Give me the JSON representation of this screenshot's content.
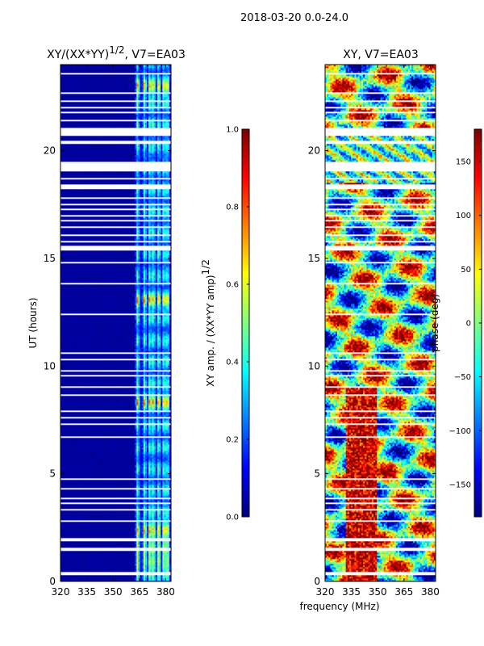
{
  "figure": {
    "suptitle": "2018-03-20 0.0-24.0",
    "xlabel": "frequency (MHz)"
  },
  "colors": {
    "colormap": [
      "#00007f",
      "#0000ff",
      "#007fff",
      "#00ffff",
      "#7fff7f",
      "#ffff00",
      "#ff7f00",
      "#ff0000",
      "#7f0000"
    ],
    "background_gap": "#ffffff",
    "axis": "#000000"
  },
  "chart_data": [
    {
      "type": "heatmap",
      "name": "amplitude-panel",
      "title_prefix": "XY/(XX*YY)",
      "title_exponent": "1/2",
      "title_suffix": ", V7=EA03",
      "xlabel": "",
      "ylabel": "UT (hours)",
      "xlim": [
        320,
        383
      ],
      "ylim": [
        0,
        24
      ],
      "xticks": [
        320,
        335,
        350,
        365,
        380
      ],
      "yticks": [
        0,
        5,
        10,
        15,
        20
      ],
      "colorbar": {
        "label_text": "XY amp. / (XX*YY amp)",
        "label_exponent": "1/2",
        "range": [
          0.0,
          1.0
        ],
        "ticks": [
          "0.0",
          "0.2",
          "0.4",
          "0.6",
          "0.8",
          "1.0"
        ],
        "tick_values": [
          0.0,
          0.2,
          0.4,
          0.6,
          0.8,
          1.0
        ]
      },
      "features": {
        "active_freq_band": [
          362,
          383
        ],
        "active_channel_columns": [
          364,
          368,
          371,
          373,
          376,
          379,
          381
        ],
        "strong_bursts_hours": [
          0.8,
          1.7,
          2.5,
          8.4,
          13.0,
          22.9
        ]
      }
    },
    {
      "type": "heatmap",
      "name": "phase-panel",
      "title": "XY, V7=EA03",
      "xlabel": "frequency (MHz)",
      "ylabel": "",
      "xlim": [
        320,
        383
      ],
      "ylim": [
        0,
        24
      ],
      "xticks": [
        320,
        335,
        350,
        365,
        380
      ],
      "yticks": [
        0,
        5,
        10,
        15,
        20
      ],
      "colorbar": {
        "label_text": "phase (deg)",
        "range": [
          -180,
          180
        ],
        "ticks": [
          "−150",
          "−100",
          "−50",
          "0",
          "50",
          "100",
          "150"
        ],
        "tick_values": [
          -150,
          -100,
          -50,
          0,
          50,
          100,
          150
        ]
      }
    }
  ],
  "gap_bands_hours": [
    [
      0.3,
      0.45
    ],
    [
      1.45,
      1.55
    ],
    [
      1.9,
      2.0
    ],
    [
      2.75,
      2.85
    ],
    [
      3.3,
      3.38
    ],
    [
      3.6,
      3.68
    ],
    [
      3.85,
      3.92
    ],
    [
      4.25,
      4.32
    ],
    [
      4.75,
      4.82
    ],
    [
      6.65,
      6.72
    ],
    [
      7.25,
      7.32
    ],
    [
      7.6,
      7.66
    ],
    [
      7.85,
      7.92
    ],
    [
      8.6,
      8.68
    ],
    [
      9.0,
      9.06
    ],
    [
      9.55,
      9.62
    ],
    [
      9.78,
      9.85
    ],
    [
      10.3,
      10.36
    ],
    [
      10.55,
      10.62
    ],
    [
      11.3,
      11.36
    ],
    [
      11.9,
      11.96
    ],
    [
      12.4,
      12.46
    ],
    [
      13.8,
      13.86
    ],
    [
      14.3,
      14.36
    ],
    [
      14.8,
      14.86
    ],
    [
      15.4,
      15.6
    ],
    [
      15.75,
      15.82
    ],
    [
      16.05,
      16.11
    ],
    [
      16.45,
      16.52
    ],
    [
      16.72,
      16.78
    ],
    [
      16.95,
      17.02
    ],
    [
      17.25,
      17.32
    ],
    [
      17.5,
      17.56
    ],
    [
      17.78,
      17.85
    ],
    [
      18.2,
      18.45
    ],
    [
      18.65,
      18.75
    ],
    [
      19.05,
      19.5
    ],
    [
      20.3,
      20.5
    ],
    [
      20.7,
      21.05
    ],
    [
      21.35,
      21.42
    ],
    [
      21.75,
      21.82
    ],
    [
      22.0,
      22.06
    ],
    [
      22.25,
      22.32
    ],
    [
      22.65,
      22.72
    ],
    [
      23.3,
      23.36
    ],
    [
      23.55,
      23.62
    ]
  ]
}
